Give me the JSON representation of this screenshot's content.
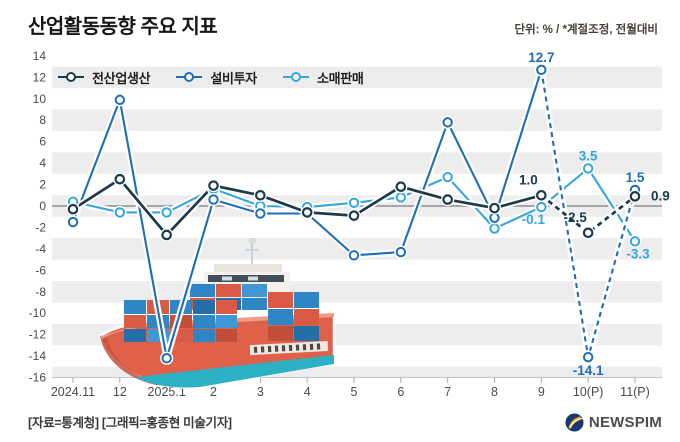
{
  "header": {
    "title": "산업활동동향 주요 지표",
    "unit_note": "단위: % / *계절조정, 전월대비"
  },
  "legend": {
    "items": [
      {
        "label": "전산업생산",
        "color": "#1c3a4a"
      },
      {
        "label": "설비투자",
        "color": "#1f6db6"
      },
      {
        "label": "소매판매",
        "color": "#35a5e0"
      }
    ]
  },
  "chart_data": {
    "type": "line",
    "title": "산업활동동향 주요 지표",
    "unit": "% (계절조정, 전월대비)",
    "categories": [
      "2024.11",
      "12",
      "2025.1",
      "2",
      "3",
      "4",
      "5",
      "6",
      "7",
      "8",
      "9",
      "10(P)",
      "11(P)"
    ],
    "yticks": [
      14,
      12,
      10,
      8,
      6,
      4,
      2,
      0,
      -2,
      -4,
      -6,
      -8,
      -10,
      -12,
      -14,
      -16
    ],
    "ylim": [
      -16,
      14
    ],
    "grid": "alternating-horizontal-bands",
    "legend_position": "top-left-inside",
    "series": [
      {
        "name": "전산업생산",
        "color": "#1c3a4a",
        "style": "solid-then-dashed",
        "dashed_from_index": 10,
        "values": [
          -0.3,
          2.5,
          -2.7,
          1.9,
          1.0,
          -0.6,
          -0.9,
          1.8,
          0.6,
          -0.2,
          1.0,
          -2.5,
          0.9
        ],
        "point_labels": [
          {
            "index": 10,
            "text": "1.0",
            "pos": "above-left"
          },
          {
            "index": 11,
            "text": "-2.5",
            "pos": "above-left"
          },
          {
            "index": 12,
            "text": "0.9",
            "pos": "right"
          }
        ]
      },
      {
        "name": "설비투자",
        "color": "#1f6db6",
        "style": "solid-then-dashed",
        "dashed_from_index": 10,
        "values": [
          -1.5,
          9.9,
          -14.2,
          0.6,
          -0.7,
          -0.7,
          -4.6,
          -4.3,
          7.8,
          -1.1,
          12.7,
          -14.1,
          1.5
        ],
        "point_labels": [
          {
            "index": 10,
            "text": "12.7",
            "pos": "above"
          },
          {
            "index": 11,
            "text": "-14.1",
            "pos": "below"
          },
          {
            "index": 12,
            "text": "1.5",
            "pos": "above"
          }
        ]
      },
      {
        "name": "소매판매",
        "color": "#35a5e0",
        "style": "solid",
        "dashed_from_index": null,
        "values": [
          0.4,
          -0.6,
          -0.6,
          1.6,
          0.0,
          -0.1,
          0.3,
          0.8,
          2.7,
          -2.1,
          -0.1,
          3.5,
          -3.3
        ],
        "point_labels": [
          {
            "index": 10,
            "text": "-0.1",
            "pos": "below-left"
          },
          {
            "index": 11,
            "text": "3.5",
            "pos": "above"
          },
          {
            "index": 12,
            "text": "-3.3",
            "pos": "below-right"
          }
        ]
      }
    ]
  },
  "illustration": {
    "name": "container-cargo-ship"
  },
  "footer": {
    "source": "[자료=통계청] [그래픽=홍종현 미술기자]",
    "logo_text": "NEWSPIM"
  },
  "colors": {
    "band": "#ededed",
    "zero_line": "#8f8f8f",
    "baseline": "#c6c6c6",
    "tick": "#aaaaaa",
    "axis_text": "#4b4b4b"
  }
}
